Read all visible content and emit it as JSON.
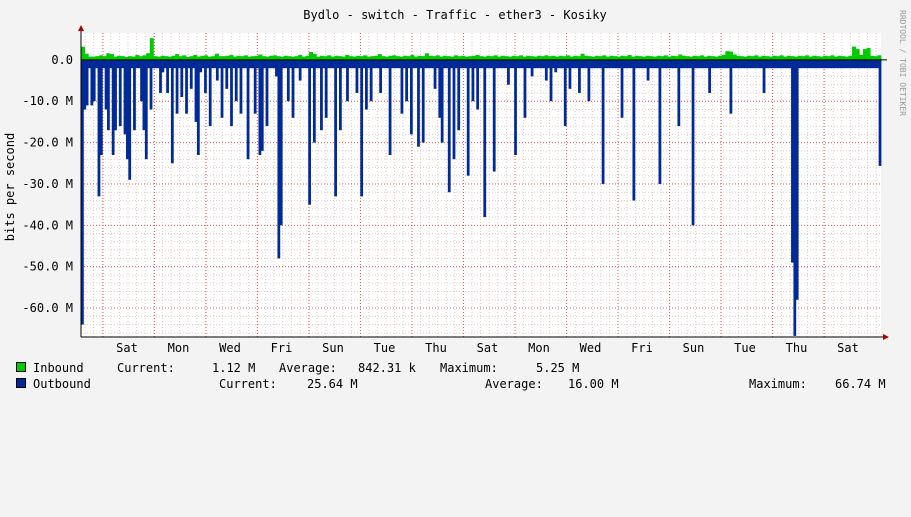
{
  "chart_data": {
    "type": "area",
    "title": "Bydlo - switch - Traffic - ether3 - Kosiky",
    "ylabel": "bits per second",
    "xlabel": "",
    "watermark": "RRDTOOL / TOBI OETIKER",
    "ylim": [
      -67000000,
      6500000
    ],
    "y_ticks": [
      {
        "value": 0,
        "label": "0.0"
      },
      {
        "value": -10000000,
        "label": "-10.0 M"
      },
      {
        "value": -20000000,
        "label": "-20.0 M"
      },
      {
        "value": -30000000,
        "label": "-30.0 M"
      },
      {
        "value": -40000000,
        "label": "-40.0 M"
      },
      {
        "value": -50000000,
        "label": "-50.0 M"
      },
      {
        "value": -60000000,
        "label": "-60.0 M"
      }
    ],
    "x_tick_labels": [
      "Sat",
      "Mon",
      "Wed",
      "Fri",
      "Sun",
      "Tue",
      "Thu",
      "Sat",
      "Mon",
      "Wed",
      "Fri",
      "Sun",
      "Tue",
      "Thu",
      "Sat"
    ],
    "series": [
      {
        "name": "Inbound",
        "color": "#00cc00",
        "current": "1.12 M",
        "average": "842.31 k",
        "maximum": "5.25 M",
        "values": [
          3.2,
          1.5,
          0.8,
          0.8,
          0.9,
          1.1,
          0.9,
          1.6,
          1.4,
          0.8,
          1.0,
          0.9,
          0.7,
          0.9,
          0.8,
          1.2,
          0.9,
          1.1,
          1.6,
          5.25,
          0.9,
          0.8,
          1.0,
          0.9,
          0.8,
          1.0,
          1.4,
          0.9,
          1.1,
          0.7,
          0.9,
          1.2,
          0.8,
          1.0,
          1.1,
          0.8,
          0.9,
          1.5,
          0.9,
          0.9,
          1.0,
          1.2,
          0.8,
          1.0,
          0.9,
          1.1,
          0.8,
          0.9,
          1.0,
          1.3,
          0.9,
          0.8,
          1.0,
          1.1,
          0.9,
          0.8,
          1.0,
          0.9,
          0.8,
          0.9,
          1.2,
          0.8,
          1.0,
          1.9,
          1.4,
          0.8,
          1.0,
          0.9,
          1.1,
          0.8,
          1.0,
          0.9,
          0.8,
          1.2,
          0.9,
          0.8,
          1.0,
          0.9,
          1.1,
          0.8,
          0.9,
          1.0,
          1.4,
          0.9,
          0.8,
          1.0,
          1.1,
          0.9,
          0.8,
          1.0,
          0.9,
          1.2,
          0.8,
          1.0,
          0.9,
          1.6,
          1.0,
          0.9,
          1.1,
          0.8,
          1.0,
          0.9,
          0.8,
          1.1,
          0.9,
          1.0,
          0.8,
          0.9,
          1.0,
          1.2,
          0.9,
          0.8,
          1.0,
          0.9,
          1.1,
          0.8,
          1.0,
          0.9,
          0.8,
          1.0,
          0.9,
          1.1,
          0.8,
          1.0,
          0.9,
          0.8,
          1.0,
          0.9,
          1.1,
          0.9,
          1.0,
          0.8,
          1.0,
          0.9,
          1.1,
          0.8,
          1.0,
          0.9,
          1.5,
          1.0,
          0.9,
          0.8,
          1.0,
          0.9,
          1.1,
          0.8,
          1.0,
          0.9,
          0.8,
          1.0,
          0.9,
          1.2,
          0.8,
          1.0,
          0.9,
          0.8,
          1.0,
          0.9,
          0.8,
          1.0,
          0.9,
          1.1,
          0.8,
          1.0,
          0.9,
          1.3,
          1.0,
          0.9,
          0.8,
          1.0,
          0.9,
          1.1,
          0.8,
          1.0,
          0.9,
          0.8,
          1.0,
          1.2,
          2.1,
          2.0,
          1.3,
          1.0,
          0.9,
          0.8,
          1.0,
          0.9,
          1.1,
          0.8,
          1.0,
          0.9,
          0.8,
          1.0,
          0.9,
          1.1,
          0.8,
          1.0,
          0.9,
          0.8,
          1.0,
          0.9,
          1.1,
          0.8,
          1.0,
          0.9,
          0.8,
          1.0,
          0.9,
          1.1,
          0.8,
          1.0,
          0.9,
          0.8,
          1.0,
          3.2,
          2.6,
          1.2,
          2.6,
          2.9,
          1.0,
          0.9,
          1.12
        ]
      },
      {
        "name": "Outbound",
        "color": "#002a97",
        "current": "25.64 M",
        "average": "16.00 M",
        "maximum": "66.74 M",
        "values": [
          -64,
          -12,
          -11,
          -2,
          -11,
          -10,
          -2,
          -33,
          -23,
          -2,
          -12,
          -17,
          -2,
          -23,
          -17,
          -2,
          -16,
          -2,
          -18,
          -24,
          -29,
          -2,
          -17,
          -2,
          -2,
          -10,
          -17,
          -24,
          -2,
          -12,
          -2,
          -2,
          -2,
          -8,
          -3,
          -2,
          -8,
          -2,
          -25,
          -2,
          -13,
          -2,
          -9,
          -2,
          -13,
          -2,
          -7,
          -2,
          -15,
          -23,
          -3,
          -2,
          -8,
          -2,
          -16,
          -2,
          -2,
          -5,
          -2,
          -14,
          -2,
          -7,
          -2,
          -16,
          -2,
          -10,
          -2,
          -13,
          -2,
          -2,
          -24,
          -2,
          -2,
          -13,
          -2,
          -23,
          -22,
          -2,
          -16,
          -2,
          -2,
          -2,
          -4,
          -48,
          -40,
          -2,
          -2,
          -10,
          -2,
          -14,
          -2,
          -2,
          -5,
          -2,
          -2,
          -2,
          -35,
          -2,
          -20,
          -2,
          -2,
          -17,
          -2,
          -14,
          -2,
          -2,
          -2,
          -33,
          -2,
          -17,
          -2,
          -2,
          -10,
          -2,
          -2,
          -2,
          -8,
          -2,
          -33,
          -2,
          -12,
          -2,
          -10,
          -2,
          -2,
          -2,
          -8,
          -2,
          -2,
          -2,
          -23,
          -2,
          -2,
          -2,
          -2,
          -13,
          -2,
          -10,
          -2,
          -18,
          -2,
          -2,
          -21,
          -2,
          -20,
          -2,
          -2,
          -2,
          -2,
          -7,
          -2,
          -14,
          -20,
          -2,
          -2,
          -32,
          -2,
          -24,
          -2,
          -17,
          -2,
          -2,
          -2,
          -28,
          -2,
          -10,
          -2,
          -12,
          -2,
          -2,
          -38,
          -2,
          -2,
          -2,
          -27,
          -2,
          -2,
          -2,
          -2,
          -2,
          -6,
          -2,
          -2,
          -23,
          -2,
          -2,
          -2,
          -14,
          -2,
          -2,
          -4,
          -2,
          -2,
          -2,
          -2,
          -2,
          -5,
          -2,
          -10,
          -2,
          -3,
          -2,
          -2,
          -2,
          -16,
          -2,
          -7,
          -2,
          -2,
          -2,
          -8,
          -2,
          -2,
          -2,
          -10,
          -2,
          -2,
          -2,
          -2,
          -2,
          -30,
          -2,
          -2,
          -2,
          -2,
          -2,
          -2,
          -2,
          -14,
          -2,
          -2,
          -2,
          -2,
          -34,
          -2,
          -2,
          -2,
          -2,
          -2,
          -5,
          -2,
          -2,
          -2,
          -2,
          -30,
          -2,
          -2,
          -2,
          -2,
          -2,
          -2,
          -2,
          -16,
          -2,
          -2,
          -2,
          -2,
          -2,
          -40,
          -2,
          -2,
          -2,
          -2,
          -2,
          -2,
          -8,
          -2,
          -2,
          -2,
          -2,
          -2,
          -2,
          -2,
          -2,
          -13,
          -2,
          -2,
          -2,
          -2,
          -2,
          -2,
          -2,
          -2,
          -2,
          -2,
          -2,
          -2,
          -2,
          -8,
          -2,
          -2,
          -2,
          -2,
          -2,
          -2,
          -2,
          -2,
          -2,
          -2,
          -2,
          -49,
          -66.74,
          -58,
          -2,
          -2,
          -2,
          -2,
          -2,
          -2,
          -2,
          -2,
          -2,
          -2,
          -2,
          -2,
          -2,
          -2,
          -2,
          -2,
          -2,
          -2,
          -2,
          -2,
          -2,
          -2,
          -2,
          -2,
          -2,
          -2,
          -2,
          -2,
          -2,
          -2,
          -2,
          -2,
          -2,
          -2,
          -25.64
        ]
      }
    ],
    "grid": true,
    "legend_position": "bottom"
  },
  "legend": {
    "inbound": {
      "label": "Inbound",
      "current_label": "Current:",
      "current": "1.12 M",
      "average_label": "Average:",
      "average": "842.31 k",
      "maximum_label": "Maximum:",
      "maximum": "5.25 M",
      "color": "#00cc00"
    },
    "outbound": {
      "label": "Outbound",
      "current_label": "Current:",
      "current": "25.64 M",
      "average_label": "Average:",
      "average": "16.00 M",
      "maximum_label": "Maximum:",
      "maximum": "66.74 M",
      "color": "#002a97"
    }
  }
}
